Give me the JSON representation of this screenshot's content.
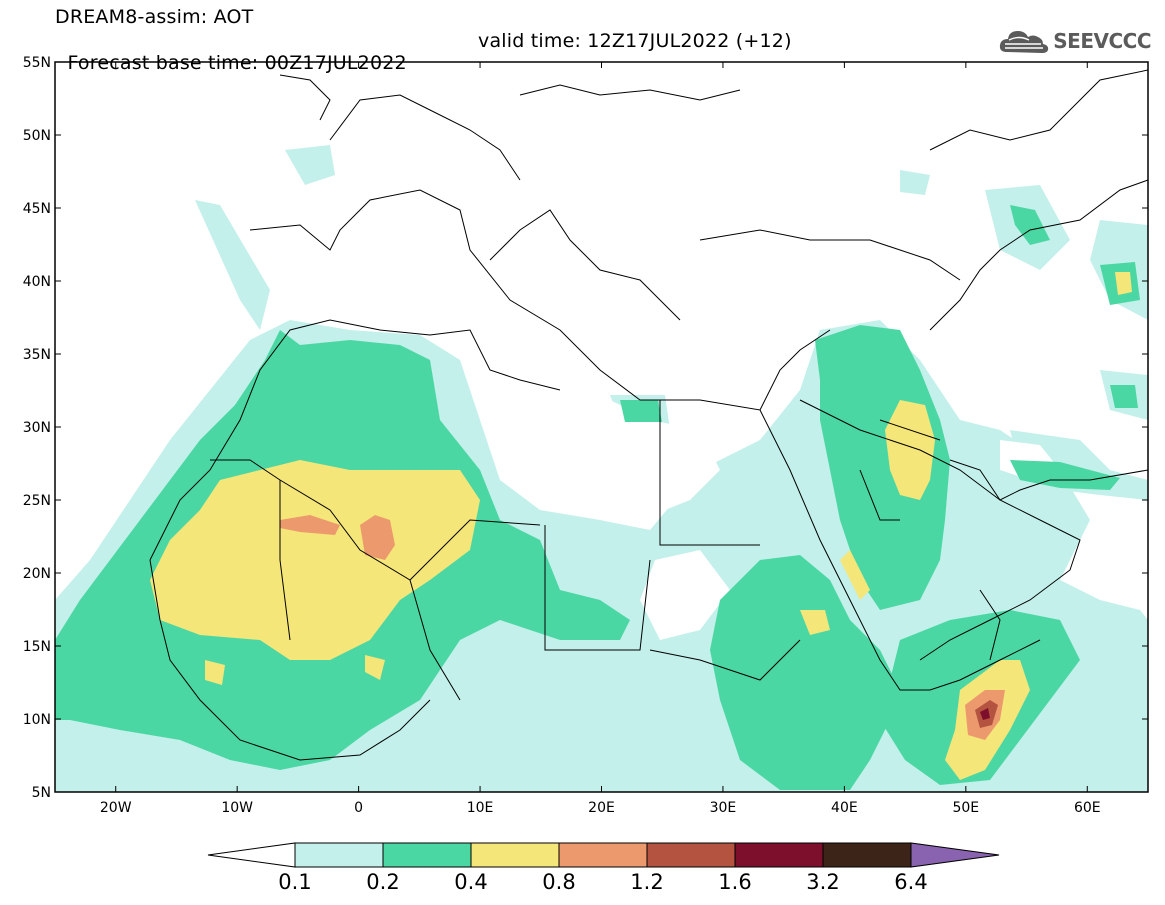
{
  "header": {
    "title": "DREAM8-assim: AOT",
    "base_time": "Forecast base time: 00Z17JUL2022",
    "valid_time": "valid time: 12Z17JUL2022 (+12)"
  },
  "logo": {
    "text": "SEEVCCC",
    "icon": "cloud-icon"
  },
  "map": {
    "lat_ticks": [
      "55N",
      "50N",
      "45N",
      "40N",
      "35N",
      "30N",
      "25N",
      "20N",
      "15N",
      "10N",
      "5N"
    ],
    "lon_ticks": [
      "20W",
      "10W",
      "0",
      "10E",
      "20E",
      "30E",
      "40E",
      "50E",
      "60E"
    ],
    "extent": {
      "lon": [
        -25,
        65
      ],
      "lat": [
        5,
        55
      ]
    }
  },
  "colorbar": {
    "levels": [
      "0.1",
      "0.2",
      "0.4",
      "0.8",
      "1.2",
      "1.6",
      "3.2",
      "6.4"
    ],
    "colors": [
      "#c3f0ea",
      "#4bd7a3",
      "#f5e679",
      "#ec9a6d",
      "#b4533f",
      "#7e0f2c",
      "#3c2518"
    ],
    "low_color": "#ffffff",
    "high_color": "#8a63b0"
  },
  "colors": {
    "land_border": "#000000",
    "background": "#ffffff"
  }
}
